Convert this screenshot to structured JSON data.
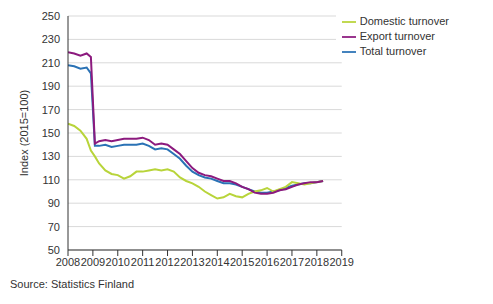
{
  "chart_data": {
    "type": "line",
    "y_label": "Index (2015=100)",
    "source": "Source: Statistics Finland",
    "x": [
      2008,
      2008.25,
      2008.5,
      2008.75,
      2008.92,
      2009.08,
      2009.25,
      2009.5,
      2009.75,
      2010,
      2010.25,
      2010.5,
      2010.75,
      2011,
      2011.25,
      2011.5,
      2011.75,
      2012,
      2012.25,
      2012.5,
      2012.75,
      2013,
      2013.25,
      2013.5,
      2013.75,
      2014,
      2014.25,
      2014.5,
      2014.75,
      2015,
      2015.25,
      2015.5,
      2015.75,
      2016,
      2016.25,
      2016.5,
      2016.75,
      2017,
      2017.25,
      2017.5,
      2017.75,
      2018,
      2018.25
    ],
    "series": [
      {
        "name": "Total turnover",
        "color": "#2a72b5",
        "values": [
          208,
          207,
          205,
          206,
          201,
          139,
          139,
          140,
          138,
          139,
          140,
          140,
          140,
          141,
          139,
          136,
          137,
          136,
          132,
          128,
          122,
          117,
          114,
          112,
          111,
          109,
          107,
          107,
          106,
          104,
          102,
          100,
          99,
          99,
          100,
          101,
          103,
          105,
          106,
          107,
          107,
          108,
          109
        ]
      },
      {
        "name": "Domestic turnover",
        "color": "#b8d43a",
        "values": [
          158,
          156,
          152,
          145,
          135,
          130,
          124,
          118,
          115,
          114,
          111,
          113,
          117,
          117,
          118,
          119,
          118,
          119,
          117,
          112,
          109,
          107,
          104,
          100,
          97,
          94,
          95,
          98,
          96,
          95,
          98,
          100,
          101,
          103,
          100,
          102,
          104,
          108,
          107,
          106,
          107,
          108,
          109
        ]
      },
      {
        "name": "Export turnover",
        "color": "#8c1a7e",
        "values": [
          219,
          218,
          216,
          218,
          215,
          141,
          143,
          144,
          143,
          144,
          145,
          145,
          145,
          146,
          144,
          140,
          141,
          140,
          136,
          132,
          126,
          120,
          116,
          114,
          113,
          111,
          109,
          109,
          107,
          104,
          102,
          99,
          98,
          98,
          99,
          101,
          102,
          104,
          106,
          107,
          108,
          108,
          109
        ]
      }
    ],
    "xlim": [
      2008,
      2019
    ],
    "xticks": [
      2008,
      2009,
      2010,
      2011,
      2012,
      2013,
      2014,
      2015,
      2016,
      2017,
      2018,
      2019
    ],
    "ylim": [
      50,
      250
    ],
    "yticks": [
      50,
      70,
      90,
      110,
      130,
      150,
      170,
      190,
      210,
      230,
      250
    ],
    "grid": true,
    "legend": "upper right"
  }
}
